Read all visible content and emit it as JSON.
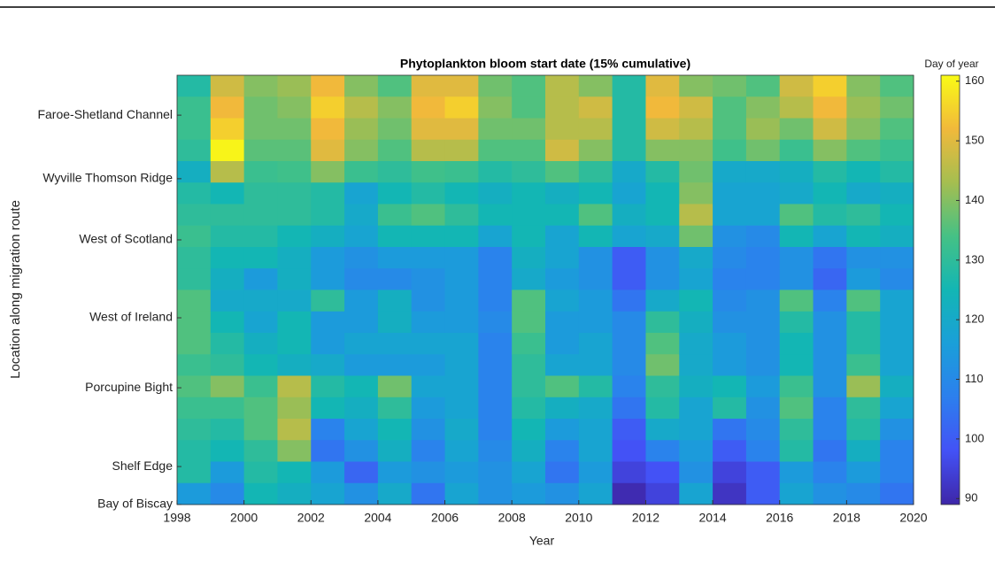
{
  "chart_data": {
    "type": "heatmap",
    "title": "Phytoplankton bloom start date (15% cumulative)",
    "x_label": "Year",
    "y_label": "Location along migration route",
    "colorbar_label": "Day of year",
    "x": [
      1998,
      1999,
      2000,
      2001,
      2002,
      2003,
      2004,
      2005,
      2006,
      2007,
      2008,
      2009,
      2010,
      2011,
      2012,
      2013,
      2014,
      2015,
      2016,
      2017,
      2018,
      2019
    ],
    "xlim": [
      1998,
      2020
    ],
    "xticks": [
      1998,
      2000,
      2002,
      2004,
      2006,
      2008,
      2010,
      2012,
      2014,
      2016,
      2018,
      2020
    ],
    "ylim": [
      0,
      20
    ],
    "yticks": [
      {
        "value": 0,
        "label": "Bay of Biscay"
      },
      {
        "value": 1.77,
        "label": "Shelf Edge"
      },
      {
        "value": 5.44,
        "label": "Porcupine Bight"
      },
      {
        "value": 8.7,
        "label": "West of Ireland"
      },
      {
        "value": 12.33,
        "label": "West of Scotland"
      },
      {
        "value": 15.18,
        "label": "Wyville Thomson Ridge"
      },
      {
        "value": 18.14,
        "label": "Faroe-Shetland Channel"
      }
    ],
    "z": [
      [
        128,
        132,
        132,
        130,
        122,
        128,
        130,
        132,
        130,
        130,
        135,
        135,
        135,
        132,
        135,
        132,
        130,
        128,
        128,
        115
      ],
      [
        148,
        152,
        155,
        160,
        145,
        125,
        130,
        128,
        125,
        122,
        120,
        125,
        128,
        130,
        140,
        132,
        128,
        125,
        115,
        110
      ],
      [
        140,
        138,
        138,
        136,
        132,
        130,
        130,
        128,
        125,
        115,
        120,
        118,
        122,
        125,
        132,
        135,
        135,
        130,
        128,
        125
      ],
      [
        142,
        140,
        138,
        136,
        133,
        130,
        130,
        125,
        122,
        122,
        120,
        125,
        125,
        122,
        145,
        142,
        145,
        140,
        125,
        122
      ],
      [
        152,
        155,
        152,
        150,
        140,
        128,
        128,
        122,
        115,
        115,
        130,
        115,
        115,
        120,
        128,
        125,
        108,
        105,
        115,
        118
      ],
      [
        140,
        145,
        142,
        140,
        132,
        118,
        120,
        118,
        112,
        110,
        115,
        115,
        118,
        115,
        125,
        122,
        118,
        112,
        102,
        112
      ],
      [
        135,
        140,
        138,
        135,
        130,
        125,
        132,
        125,
        115,
        110,
        122,
        122,
        118,
        115,
        138,
        130,
        125,
        122,
        115,
        120
      ],
      [
        150,
        152,
        150,
        145,
        133,
        128,
        135,
        125,
        115,
        112,
        112,
        115,
        118,
        115,
        118,
        115,
        112,
        108,
        112,
        105
      ],
      [
        150,
        155,
        150,
        145,
        132,
        125,
        130,
        125,
        115,
        115,
        115,
        115,
        118,
        118,
        118,
        118,
        120,
        118,
        115,
        118
      ],
      [
        138,
        140,
        138,
        135,
        128,
        122,
        125,
        118,
        108,
        108,
        108,
        110,
        108,
        108,
        108,
        108,
        108,
        110,
        112,
        112
      ],
      [
        135,
        135,
        138,
        135,
        130,
        125,
        125,
        125,
        122,
        120,
        135,
        135,
        132,
        130,
        130,
        128,
        125,
        122,
        118,
        115
      ],
      [
        145,
        145,
        145,
        148,
        135,
        122,
        125,
        118,
        118,
        115,
        118,
        115,
        115,
        118,
        135,
        122,
        115,
        108,
        105,
        112
      ],
      [
        140,
        148,
        145,
        140,
        130,
        125,
        135,
        125,
        112,
        112,
        115,
        115,
        118,
        118,
        128,
        120,
        118,
        118,
        115,
        118
      ],
      [
        128,
        128,
        128,
        128,
        120,
        118,
        122,
        118,
        100,
        100,
        105,
        110,
        110,
        110,
        108,
        105,
        100,
        98,
        95,
        90
      ],
      [
        150,
        152,
        148,
        140,
        128,
        125,
        125,
        120,
        112,
        112,
        120,
        130,
        135,
        138,
        130,
        128,
        120,
        108,
        98,
        95
      ],
      [
        140,
        148,
        145,
        140,
        138,
        140,
        145,
        138,
        120,
        118,
        125,
        122,
        120,
        120,
        122,
        118,
        118,
        115,
        112,
        118
      ],
      [
        138,
        135,
        135,
        133,
        120,
        118,
        118,
        112,
        110,
        108,
        110,
        112,
        115,
        115,
        125,
        128,
        105,
        100,
        95,
        92
      ],
      [
        135,
        140,
        142,
        138,
        120,
        118,
        118,
        110,
        108,
        108,
        112,
        112,
        112,
        112,
        115,
        112,
        110,
        108,
        100,
        100
      ],
      [
        148,
        145,
        138,
        132,
        122,
        120,
        135,
        125,
        112,
        112,
        135,
        128,
        125,
        125,
        132,
        135,
        130,
        128,
        115,
        118
      ],
      [
        155,
        152,
        148,
        140,
        128,
        125,
        128,
        118,
        105,
        102,
        108,
        112,
        112,
        112,
        112,
        108,
        108,
        105,
        108,
        112
      ],
      [
        140,
        142,
        140,
        135,
        125,
        120,
        130,
        125,
        112,
        115,
        135,
        128,
        128,
        132,
        142,
        130,
        128,
        122,
        115,
        110
      ],
      [
        135,
        138,
        135,
        132,
        128,
        122,
        125,
        122,
        112,
        110,
        118,
        118,
        118,
        118,
        122,
        118,
        112,
        108,
        108,
        105
      ]
    ],
    "clim": [
      89,
      161
    ],
    "cticks": [
      90,
      100,
      110,
      120,
      130,
      140,
      150,
      160
    ],
    "colormap": [
      "#3e26a8",
      "#4352f6",
      "#2c7fee",
      "#1a9fd9",
      "#13b6b4",
      "#45c185",
      "#a5be50",
      "#f1b93b",
      "#f9fb15"
    ]
  }
}
